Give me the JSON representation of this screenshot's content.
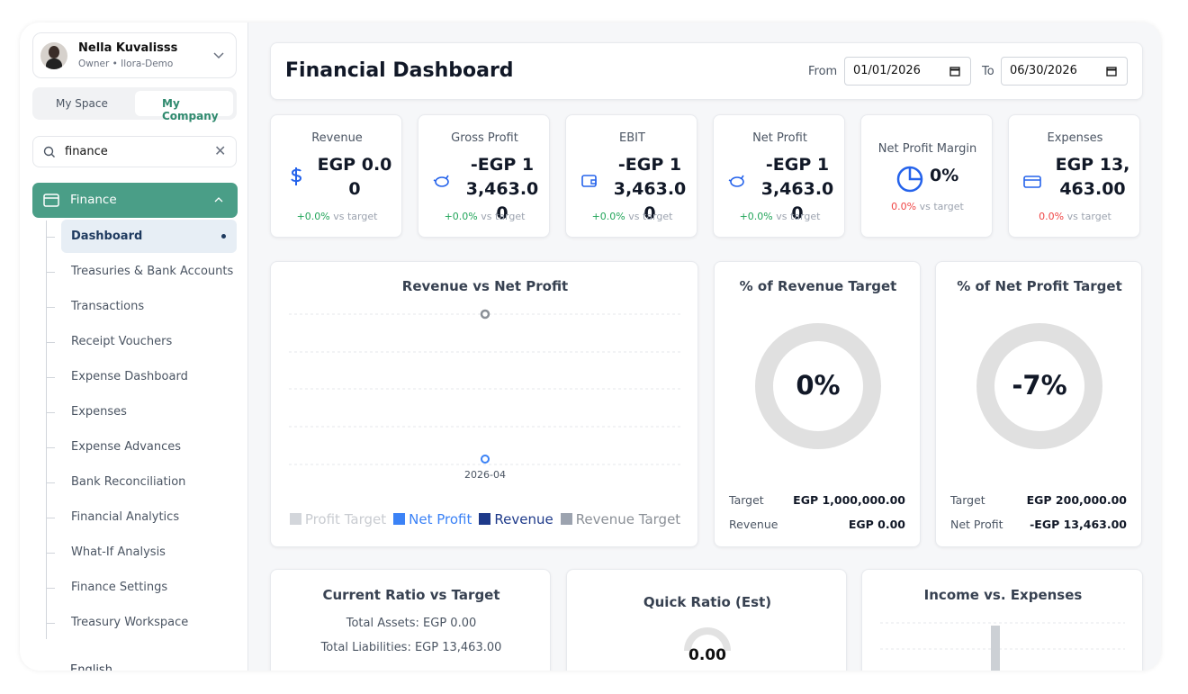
{
  "sidebar": {
    "user": {
      "name": "Nella Kuvalisss",
      "role": "Owner • Ilora-Demo"
    },
    "tabs": [
      "My Space",
      "My Company"
    ],
    "search": "finance",
    "section": "Finance",
    "items": [
      "Dashboard",
      "Treasuries & Bank Accounts",
      "Transactions",
      "Receipt Vouchers",
      "Expense Dashboard",
      "Expenses",
      "Expense Advances",
      "Bank Reconciliation",
      "Financial Analytics",
      "What-If Analysis",
      "Finance Settings",
      "Treasury Workspace"
    ],
    "language": "English"
  },
  "header": {
    "title": "Financial Dashboard",
    "from_label": "From",
    "from": "01/01/2026",
    "to_label": "To",
    "to": "06/30/2026"
  },
  "kpis": [
    {
      "label": "Revenue",
      "value": "EGP 0.00",
      "delta": "+0.0%",
      "note": "vs target"
    },
    {
      "label": "Gross Profit",
      "value": "-EGP 13,463.00",
      "delta": "+0.0%",
      "note": "vs target"
    },
    {
      "label": "EBIT",
      "value": "-EGP 13,463.00",
      "delta": "+0.0%",
      "note": "vs target"
    },
    {
      "label": "Net Profit",
      "value": "-EGP 13,463.00",
      "delta": "+0.0%",
      "note": "vs target"
    },
    {
      "label": "Net Profit Margin",
      "value": "0%",
      "delta": "0.0%",
      "note": "vs target"
    },
    {
      "label": "Expenses",
      "value": "EGP 13,463.00",
      "delta": "0.0%",
      "note": "vs target"
    }
  ],
  "trend": {
    "title": "Revenue vs Net Profit",
    "x_label": "2026-04",
    "legend": [
      "Profit Target",
      "Net Profit",
      "Revenue",
      "Revenue Target"
    ]
  },
  "gauges": [
    {
      "title": "% of Revenue Target",
      "value": "0%",
      "rows": [
        [
          "Target",
          "EGP 1,000,000.00"
        ],
        [
          "Revenue",
          "EGP 0.00"
        ]
      ]
    },
    {
      "title": "% of Net Profit Target",
      "value": "-7%",
      "rows": [
        [
          "Target",
          "EGP 200,000.00"
        ],
        [
          "Net Profit",
          "-EGP 13,463.00"
        ]
      ]
    }
  ],
  "bottom": {
    "current_ratio": {
      "title": "Current Ratio vs Target",
      "lines": [
        "Total Assets: EGP 0.00",
        "Total Liabilities: EGP 13,463.00"
      ]
    },
    "quick_ratio": {
      "title": "Quick Ratio (Est)",
      "value": "0.00"
    },
    "income": {
      "title": "Income vs. Expenses"
    }
  }
}
